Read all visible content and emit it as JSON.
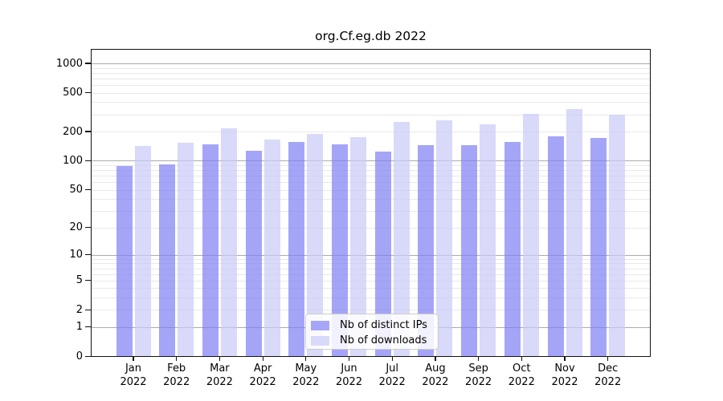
{
  "figure": {
    "background": "#ffffff"
  },
  "chart_data": {
    "type": "bar",
    "title": "org.Cf.eg.db 2022",
    "categories": [
      "Jan 2022",
      "Feb 2022",
      "Mar 2022",
      "Apr 2022",
      "May 2022",
      "Jun 2022",
      "Jul 2022",
      "Aug 2022",
      "Sep 2022",
      "Oct 2022",
      "Nov 2022",
      "Dec 2022"
    ],
    "series": [
      {
        "name": "Nb of distinct IPs",
        "color": "#a6a6f8",
        "fill": "rgba(127,127,245,0.7)",
        "values": [
          88,
          92,
          148,
          127,
          156,
          149,
          125,
          145,
          145,
          155,
          177,
          172
        ]
      },
      {
        "name": "Nb of downloads",
        "color": "#d9d9f9",
        "fill": "rgba(201,201,246,0.7)",
        "values": [
          142,
          153,
          215,
          166,
          190,
          175,
          250,
          263,
          238,
          305,
          338,
          300
        ]
      }
    ],
    "y_axis": {
      "scale": "log10(value+1)",
      "tick_values": [
        0,
        1,
        2,
        5,
        10,
        20,
        50,
        100,
        200,
        500,
        1000
      ],
      "max": 1455
    },
    "grid": {
      "enabled": true,
      "major_color": "#ababab",
      "minor_color": "#e9e9e9"
    },
    "legend": {
      "position": "inside-bottom-center",
      "entries": [
        "Nb of distinct IPs",
        "Nb of downloads"
      ]
    }
  }
}
